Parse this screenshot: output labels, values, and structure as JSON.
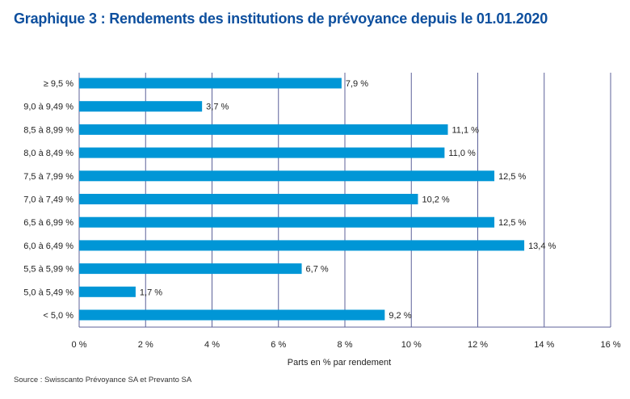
{
  "chart_data": {
    "type": "bar",
    "orientation": "horizontal",
    "title": "Graphique 3 : Rendements des institutions de prévoyance depuis le 01.01.2020",
    "xlabel": "Parts en % par rendement",
    "ylabel": "",
    "categories": [
      "≥ 9,5 %",
      "9,0 à 9,49 %",
      "8,5 à 8,99 %",
      "8,0 à 8,49 %",
      "7,5 à 7,99 %",
      "7,0 à 7,49 %",
      "6,5 à 6,99 %",
      "6,0 à 6,49 %",
      "5,5 à 5,99 %",
      "5,0 à 5,49 %",
      "< 5,0 %"
    ],
    "values": [
      7.9,
      3.7,
      11.1,
      11.0,
      12.5,
      10.2,
      12.5,
      13.4,
      6.7,
      1.7,
      9.2
    ],
    "data_labels": [
      "7,9 %",
      "3,7 %",
      "11,1 %",
      "11,0 %",
      "12,5 %",
      "10,2 %",
      "12,5 %",
      "13,4 %",
      "6,7 %",
      "1,7 %",
      "9,2 %"
    ],
    "xlim": [
      0,
      16
    ],
    "xticks": [
      0,
      2,
      4,
      6,
      8,
      10,
      12,
      14,
      16
    ],
    "xtick_labels": [
      "0 %",
      "2 %",
      "4 %",
      "6 %",
      "8 %",
      "10 %",
      "12 %",
      "14 %",
      "16 %"
    ],
    "grid": "vertical",
    "legend": "none",
    "colors": {
      "bar": "#0096d6",
      "grid": "#5c6199",
      "title": "#0d4f9e"
    }
  },
  "source": "Source : Swisscanto Prévoyance SA et Prevanto SA"
}
